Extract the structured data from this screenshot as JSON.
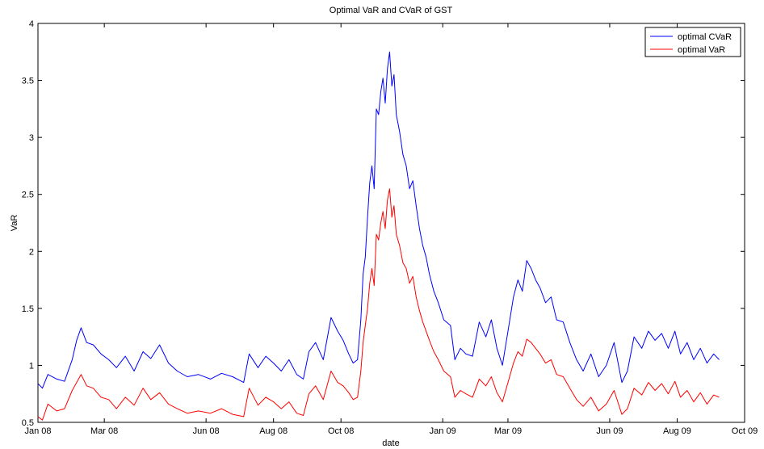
{
  "chart_data": {
    "type": "line",
    "title": "Optimal VaR and CVaR of GST",
    "xlabel": "date",
    "ylabel": "VaR",
    "x_axis_type": "date",
    "xlim": [
      "2008-01-01",
      "2009-10-01"
    ],
    "ylim": [
      0.5,
      4
    ],
    "x_ticks": [
      {
        "date": "2008-01-01",
        "label": "Jan 08"
      },
      {
        "date": "2008-03-01",
        "label": "Mar 08"
      },
      {
        "date": "2008-06-01",
        "label": "Jun 08"
      },
      {
        "date": "2008-08-01",
        "label": "Aug 08"
      },
      {
        "date": "2008-10-01",
        "label": "Oct 08"
      },
      {
        "date": "2009-01-01",
        "label": "Jan 09"
      },
      {
        "date": "2009-03-01",
        "label": "Mar 09"
      },
      {
        "date": "2009-06-01",
        "label": "Jun 09"
      },
      {
        "date": "2009-08-01",
        "label": "Aug 09"
      },
      {
        "date": "2009-10-01",
        "label": "Oct 09"
      }
    ],
    "y_ticks": [
      0.5,
      1,
      1.5,
      2,
      2.5,
      3,
      3.5,
      4
    ],
    "y_tick_labels": [
      "0.5",
      "1",
      "1.5",
      "2",
      "2.5",
      "3",
      "3.5",
      "4"
    ],
    "grid": false,
    "legend_position": "top-right",
    "series": [
      {
        "name": "optimal CVaR",
        "color": "#0000ff",
        "points": [
          [
            "2008-01-01",
            0.84
          ],
          [
            "2008-01-05",
            0.8
          ],
          [
            "2008-01-10",
            0.92
          ],
          [
            "2008-01-18",
            0.88
          ],
          [
            "2008-01-25",
            0.86
          ],
          [
            "2008-02-01",
            1.05
          ],
          [
            "2008-02-05",
            1.22
          ],
          [
            "2008-02-09",
            1.33
          ],
          [
            "2008-02-14",
            1.2
          ],
          [
            "2008-02-20",
            1.18
          ],
          [
            "2008-02-27",
            1.1
          ],
          [
            "2008-03-05",
            1.05
          ],
          [
            "2008-03-12",
            0.98
          ],
          [
            "2008-03-20",
            1.08
          ],
          [
            "2008-03-28",
            0.95
          ],
          [
            "2008-04-05",
            1.12
          ],
          [
            "2008-04-12",
            1.06
          ],
          [
            "2008-04-20",
            1.18
          ],
          [
            "2008-04-28",
            1.02
          ],
          [
            "2008-05-06",
            0.95
          ],
          [
            "2008-05-15",
            0.9
          ],
          [
            "2008-05-25",
            0.92
          ],
          [
            "2008-06-05",
            0.88
          ],
          [
            "2008-06-15",
            0.93
          ],
          [
            "2008-06-25",
            0.9
          ],
          [
            "2008-07-05",
            0.85
          ],
          [
            "2008-07-10",
            1.1
          ],
          [
            "2008-07-18",
            0.98
          ],
          [
            "2008-07-25",
            1.08
          ],
          [
            "2008-08-01",
            1.02
          ],
          [
            "2008-08-08",
            0.95
          ],
          [
            "2008-08-15",
            1.05
          ],
          [
            "2008-08-22",
            0.92
          ],
          [
            "2008-08-28",
            0.88
          ],
          [
            "2008-09-02",
            1.12
          ],
          [
            "2008-09-08",
            1.2
          ],
          [
            "2008-09-15",
            1.05
          ],
          [
            "2008-09-22",
            1.42
          ],
          [
            "2008-09-28",
            1.3
          ],
          [
            "2008-10-03",
            1.22
          ],
          [
            "2008-10-08",
            1.1
          ],
          [
            "2008-10-12",
            1.02
          ],
          [
            "2008-10-16",
            1.05
          ],
          [
            "2008-10-19",
            1.4
          ],
          [
            "2008-10-21",
            1.8
          ],
          [
            "2008-10-23",
            1.95
          ],
          [
            "2008-10-25",
            2.3
          ],
          [
            "2008-10-27",
            2.6
          ],
          [
            "2008-10-29",
            2.75
          ],
          [
            "2008-10-31",
            2.55
          ],
          [
            "2008-11-02",
            3.25
          ],
          [
            "2008-11-04",
            3.2
          ],
          [
            "2008-11-06",
            3.4
          ],
          [
            "2008-11-08",
            3.52
          ],
          [
            "2008-11-10",
            3.3
          ],
          [
            "2008-11-12",
            3.6
          ],
          [
            "2008-11-14",
            3.75
          ],
          [
            "2008-11-16",
            3.45
          ],
          [
            "2008-11-18",
            3.55
          ],
          [
            "2008-11-20",
            3.2
          ],
          [
            "2008-11-23",
            3.05
          ],
          [
            "2008-11-26",
            2.85
          ],
          [
            "2008-11-29",
            2.75
          ],
          [
            "2008-12-02",
            2.55
          ],
          [
            "2008-12-05",
            2.62
          ],
          [
            "2008-12-08",
            2.4
          ],
          [
            "2008-12-11",
            2.2
          ],
          [
            "2008-12-14",
            2.05
          ],
          [
            "2008-12-17",
            1.95
          ],
          [
            "2008-12-20",
            1.8
          ],
          [
            "2008-12-24",
            1.65
          ],
          [
            "2008-12-28",
            1.55
          ],
          [
            "2009-01-02",
            1.4
          ],
          [
            "2009-01-08",
            1.35
          ],
          [
            "2009-01-12",
            1.05
          ],
          [
            "2009-01-17",
            1.15
          ],
          [
            "2009-01-22",
            1.1
          ],
          [
            "2009-01-28",
            1.08
          ],
          [
            "2009-02-03",
            1.38
          ],
          [
            "2009-02-09",
            1.25
          ],
          [
            "2009-02-14",
            1.4
          ],
          [
            "2009-02-19",
            1.15
          ],
          [
            "2009-02-24",
            1.0
          ],
          [
            "2009-03-01",
            1.3
          ],
          [
            "2009-03-06",
            1.6
          ],
          [
            "2009-03-10",
            1.75
          ],
          [
            "2009-03-14",
            1.65
          ],
          [
            "2009-03-18",
            1.92
          ],
          [
            "2009-03-22",
            1.85
          ],
          [
            "2009-03-26",
            1.75
          ],
          [
            "2009-03-30",
            1.68
          ],
          [
            "2009-04-04",
            1.55
          ],
          [
            "2009-04-09",
            1.6
          ],
          [
            "2009-04-14",
            1.4
          ],
          [
            "2009-04-20",
            1.38
          ],
          [
            "2009-04-26",
            1.2
          ],
          [
            "2009-05-02",
            1.05
          ],
          [
            "2009-05-08",
            0.95
          ],
          [
            "2009-05-15",
            1.1
          ],
          [
            "2009-05-22",
            0.9
          ],
          [
            "2009-05-29",
            1.0
          ],
          [
            "2009-06-05",
            1.2
          ],
          [
            "2009-06-12",
            0.85
          ],
          [
            "2009-06-17",
            0.95
          ],
          [
            "2009-06-23",
            1.25
          ],
          [
            "2009-06-30",
            1.15
          ],
          [
            "2009-07-06",
            1.3
          ],
          [
            "2009-07-12",
            1.22
          ],
          [
            "2009-07-18",
            1.28
          ],
          [
            "2009-07-24",
            1.15
          ],
          [
            "2009-07-30",
            1.3
          ],
          [
            "2009-08-04",
            1.1
          ],
          [
            "2009-08-10",
            1.2
          ],
          [
            "2009-08-16",
            1.05
          ],
          [
            "2009-08-22",
            1.15
          ],
          [
            "2009-08-28",
            1.02
          ],
          [
            "2009-09-03",
            1.1
          ],
          [
            "2009-09-08",
            1.05
          ]
        ]
      },
      {
        "name": "optimal VaR",
        "color": "#ff0000",
        "points": [
          [
            "2008-01-01",
            0.55
          ],
          [
            "2008-01-05",
            0.52
          ],
          [
            "2008-01-10",
            0.66
          ],
          [
            "2008-01-18",
            0.6
          ],
          [
            "2008-01-25",
            0.62
          ],
          [
            "2008-02-01",
            0.78
          ],
          [
            "2008-02-05",
            0.85
          ],
          [
            "2008-02-09",
            0.92
          ],
          [
            "2008-02-14",
            0.82
          ],
          [
            "2008-02-20",
            0.8
          ],
          [
            "2008-02-27",
            0.72
          ],
          [
            "2008-03-05",
            0.7
          ],
          [
            "2008-03-12",
            0.62
          ],
          [
            "2008-03-20",
            0.72
          ],
          [
            "2008-03-28",
            0.65
          ],
          [
            "2008-04-05",
            0.8
          ],
          [
            "2008-04-12",
            0.7
          ],
          [
            "2008-04-20",
            0.76
          ],
          [
            "2008-04-28",
            0.66
          ],
          [
            "2008-05-06",
            0.62
          ],
          [
            "2008-05-15",
            0.58
          ],
          [
            "2008-05-25",
            0.6
          ],
          [
            "2008-06-05",
            0.58
          ],
          [
            "2008-06-15",
            0.62
          ],
          [
            "2008-06-25",
            0.57
          ],
          [
            "2008-07-05",
            0.55
          ],
          [
            "2008-07-10",
            0.8
          ],
          [
            "2008-07-18",
            0.65
          ],
          [
            "2008-07-25",
            0.72
          ],
          [
            "2008-08-01",
            0.68
          ],
          [
            "2008-08-08",
            0.62
          ],
          [
            "2008-08-15",
            0.68
          ],
          [
            "2008-08-22",
            0.58
          ],
          [
            "2008-08-28",
            0.56
          ],
          [
            "2008-09-02",
            0.75
          ],
          [
            "2008-09-08",
            0.82
          ],
          [
            "2008-09-15",
            0.7
          ],
          [
            "2008-09-22",
            0.95
          ],
          [
            "2008-09-28",
            0.85
          ],
          [
            "2008-10-03",
            0.82
          ],
          [
            "2008-10-08",
            0.76
          ],
          [
            "2008-10-12",
            0.7
          ],
          [
            "2008-10-16",
            0.72
          ],
          [
            "2008-10-19",
            0.95
          ],
          [
            "2008-10-21",
            1.2
          ],
          [
            "2008-10-23",
            1.35
          ],
          [
            "2008-10-25",
            1.5
          ],
          [
            "2008-10-27",
            1.72
          ],
          [
            "2008-10-29",
            1.85
          ],
          [
            "2008-10-31",
            1.7
          ],
          [
            "2008-11-02",
            2.15
          ],
          [
            "2008-11-04",
            2.1
          ],
          [
            "2008-11-06",
            2.25
          ],
          [
            "2008-11-08",
            2.35
          ],
          [
            "2008-11-10",
            2.2
          ],
          [
            "2008-11-12",
            2.45
          ],
          [
            "2008-11-14",
            2.55
          ],
          [
            "2008-11-16",
            2.3
          ],
          [
            "2008-11-18",
            2.4
          ],
          [
            "2008-11-20",
            2.15
          ],
          [
            "2008-11-23",
            2.05
          ],
          [
            "2008-11-26",
            1.9
          ],
          [
            "2008-11-29",
            1.85
          ],
          [
            "2008-12-02",
            1.72
          ],
          [
            "2008-12-05",
            1.78
          ],
          [
            "2008-12-08",
            1.6
          ],
          [
            "2008-12-11",
            1.48
          ],
          [
            "2008-12-14",
            1.38
          ],
          [
            "2008-12-17",
            1.3
          ],
          [
            "2008-12-20",
            1.22
          ],
          [
            "2008-12-24",
            1.12
          ],
          [
            "2008-12-28",
            1.05
          ],
          [
            "2009-01-02",
            0.95
          ],
          [
            "2009-01-08",
            0.9
          ],
          [
            "2009-01-12",
            0.72
          ],
          [
            "2009-01-17",
            0.78
          ],
          [
            "2009-01-22",
            0.75
          ],
          [
            "2009-01-28",
            0.72
          ],
          [
            "2009-02-03",
            0.88
          ],
          [
            "2009-02-09",
            0.82
          ],
          [
            "2009-02-14",
            0.9
          ],
          [
            "2009-02-19",
            0.76
          ],
          [
            "2009-02-24",
            0.68
          ],
          [
            "2009-03-01",
            0.85
          ],
          [
            "2009-03-06",
            1.02
          ],
          [
            "2009-03-10",
            1.12
          ],
          [
            "2009-03-14",
            1.08
          ],
          [
            "2009-03-18",
            1.23
          ],
          [
            "2009-03-22",
            1.2
          ],
          [
            "2009-03-26",
            1.15
          ],
          [
            "2009-03-30",
            1.1
          ],
          [
            "2009-04-04",
            1.02
          ],
          [
            "2009-04-09",
            1.05
          ],
          [
            "2009-04-14",
            0.92
          ],
          [
            "2009-04-20",
            0.9
          ],
          [
            "2009-04-26",
            0.8
          ],
          [
            "2009-05-02",
            0.7
          ],
          [
            "2009-05-08",
            0.64
          ],
          [
            "2009-05-15",
            0.72
          ],
          [
            "2009-05-22",
            0.6
          ],
          [
            "2009-05-29",
            0.66
          ],
          [
            "2009-06-05",
            0.78
          ],
          [
            "2009-06-12",
            0.57
          ],
          [
            "2009-06-17",
            0.62
          ],
          [
            "2009-06-23",
            0.8
          ],
          [
            "2009-06-30",
            0.74
          ],
          [
            "2009-07-06",
            0.85
          ],
          [
            "2009-07-12",
            0.78
          ],
          [
            "2009-07-18",
            0.84
          ],
          [
            "2009-07-24",
            0.75
          ],
          [
            "2009-07-30",
            0.86
          ],
          [
            "2009-08-04",
            0.72
          ],
          [
            "2009-08-10",
            0.78
          ],
          [
            "2009-08-16",
            0.68
          ],
          [
            "2009-08-22",
            0.76
          ],
          [
            "2009-08-28",
            0.66
          ],
          [
            "2009-09-03",
            0.74
          ],
          [
            "2009-09-08",
            0.72
          ]
        ]
      }
    ]
  }
}
